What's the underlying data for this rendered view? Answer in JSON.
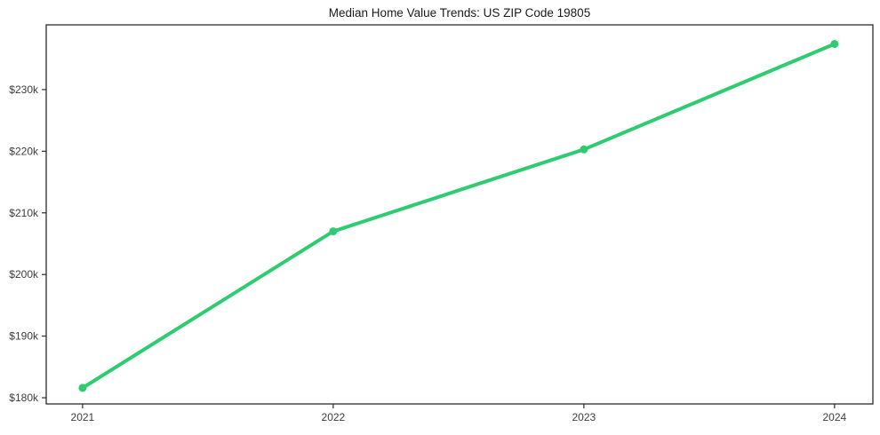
{
  "chart_data": {
    "type": "line",
    "title": "Median Home Value Trends: US ZIP Code 19805",
    "xlabel": "",
    "ylabel": "",
    "x": [
      2021,
      2022,
      2023,
      2024
    ],
    "series": [
      {
        "name": "median-home-value",
        "values": [
          181600,
          207000,
          220300,
          237400
        ]
      }
    ],
    "xticks": [
      {
        "value": 2021,
        "label": "2021"
      },
      {
        "value": 2022,
        "label": "2022"
      },
      {
        "value": 2023,
        "label": "2023"
      },
      {
        "value": 2024,
        "label": "2024"
      }
    ],
    "yticks": [
      {
        "value": 180000,
        "label": "$180k"
      },
      {
        "value": 190000,
        "label": "$190k"
      },
      {
        "value": 200000,
        "label": "$200k"
      },
      {
        "value": 210000,
        "label": "$210k"
      },
      {
        "value": 220000,
        "label": "$220k"
      },
      {
        "value": 230000,
        "label": "$230k"
      }
    ],
    "xlim": [
      2020.855,
      2024.153
    ],
    "ylim": [
      179000,
      240500
    ],
    "grid": false,
    "legend": "none",
    "line_color": "#2ecc71",
    "marker_color": "#2ecc71",
    "axis_color": "#1a1a1a",
    "tick_label_color": "#3d3d3d",
    "background_color": "#ffffff"
  }
}
